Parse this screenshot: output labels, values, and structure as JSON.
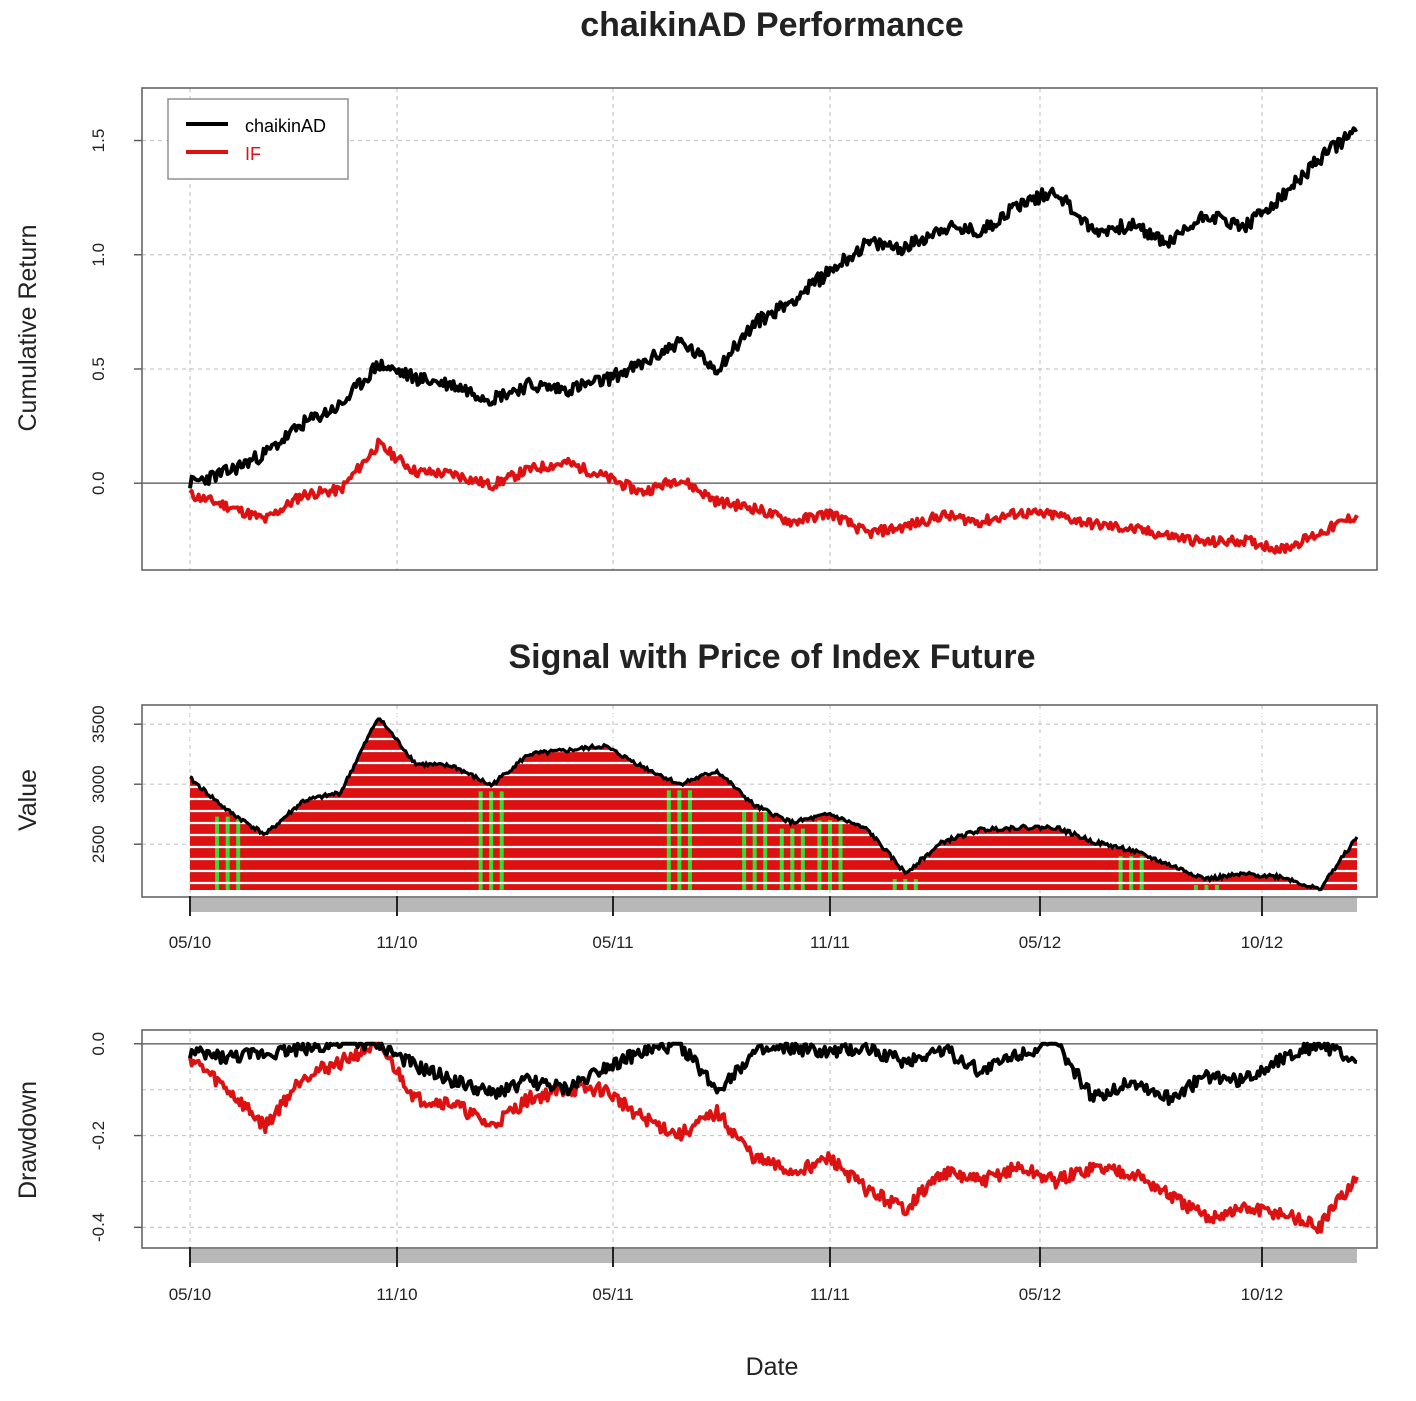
{
  "colors": {
    "strategy": "#000000",
    "benchmark": "#dd1111",
    "long_bar": "#dd1111",
    "short_bar": "#33dd33",
    "stripe": "#ffffff",
    "axis_band": "#b8b8b8"
  },
  "x_axis": {
    "label": "Date",
    "tick_labels": [
      "05/10",
      "11/10",
      "05/11",
      "11/11",
      "05/12",
      "10/12"
    ]
  },
  "chart_data": [
    {
      "type": "line",
      "title": "chaikinAD Performance",
      "ylabel": "Cumulative Return",
      "xlabel": "",
      "categories": [
        "05/10",
        "11/10",
        "05/11",
        "11/11",
        "05/12",
        "10/12"
      ],
      "yticks": [
        "0.0",
        "0.5",
        "1.0",
        "1.5"
      ],
      "ylim": [
        -0.38,
        1.73
      ],
      "grid": true,
      "legend": "top-left",
      "x": [
        "2010-05",
        "2010-06",
        "2010-07",
        "2010-08",
        "2010-09",
        "2010-10",
        "2010-11",
        "2010-12",
        "2011-01",
        "2011-02",
        "2011-03",
        "2011-04",
        "2011-05",
        "2011-06",
        "2011-07",
        "2011-08",
        "2011-09",
        "2011-10",
        "2011-11",
        "2011-12",
        "2012-01",
        "2012-02",
        "2012-03",
        "2012-04",
        "2012-05",
        "2012-06",
        "2012-07",
        "2012-08",
        "2012-09",
        "2012-10",
        "2012-11",
        "2012-12"
      ],
      "series": [
        {
          "name": "chaikinAD",
          "values": [
            0.0,
            0.05,
            0.13,
            0.26,
            0.34,
            0.52,
            0.46,
            0.43,
            0.37,
            0.43,
            0.41,
            0.45,
            0.52,
            0.62,
            0.5,
            0.7,
            0.8,
            0.93,
            1.05,
            1.03,
            1.12,
            1.1,
            1.22,
            1.28,
            1.1,
            1.13,
            1.05,
            1.18,
            1.12,
            1.25,
            1.42,
            1.55
          ]
        },
        {
          "name": "IF",
          "values": [
            -0.05,
            -0.1,
            -0.16,
            -0.05,
            -0.03,
            0.17,
            0.05,
            0.04,
            -0.01,
            0.06,
            0.09,
            0.03,
            -0.04,
            0.02,
            -0.08,
            -0.11,
            -0.17,
            -0.13,
            -0.22,
            -0.19,
            -0.14,
            -0.17,
            -0.13,
            -0.14,
            -0.18,
            -0.2,
            -0.23,
            -0.26,
            -0.25,
            -0.29,
            -0.22,
            -0.14
          ]
        }
      ]
    },
    {
      "type": "bar",
      "title": "Signal with Price of Index Future",
      "ylabel": "Value",
      "xlabel": "Date",
      "categories": [
        "05/10",
        "11/10",
        "05/11",
        "11/11",
        "05/12",
        "10/12"
      ],
      "yticks": [
        "2500",
        "3000",
        "3500"
      ],
      "ylim": [
        2060,
        3660
      ],
      "grid": true,
      "x": [
        "2010-05",
        "2010-06",
        "2010-07",
        "2010-08",
        "2010-09",
        "2010-10",
        "2010-11",
        "2010-12",
        "2011-01",
        "2011-02",
        "2011-03",
        "2011-04",
        "2011-05",
        "2011-06",
        "2011-07",
        "2011-08",
        "2011-09",
        "2011-10",
        "2011-11",
        "2011-12",
        "2012-01",
        "2012-02",
        "2012-03",
        "2012-04",
        "2012-05",
        "2012-06",
        "2012-07",
        "2012-08",
        "2012-09",
        "2012-10",
        "2012-11",
        "2012-12"
      ],
      "series": [
        {
          "name": "",
          "values": [
            3050,
            2780,
            2580,
            2860,
            2930,
            3560,
            3170,
            3150,
            2990,
            3250,
            3280,
            3320,
            3150,
            3000,
            3110,
            2820,
            2680,
            2750,
            2620,
            2260,
            2520,
            2620,
            2640,
            2640,
            2520,
            2450,
            2330,
            2210,
            2250,
            2230,
            2120,
            2560
          ]
        },
        {
          "name": "signal",
          "values": [
            1,
            -1,
            1,
            1,
            1,
            1,
            1,
            1,
            -1,
            1,
            1,
            1,
            1,
            -1,
            1,
            -1,
            -1,
            -1,
            1,
            -1,
            1,
            1,
            1,
            1,
            1,
            -1,
            1,
            -1,
            1,
            1,
            1,
            1
          ]
        }
      ]
    },
    {
      "type": "line",
      "title": "",
      "ylabel": "Drawdown",
      "xlabel": "Date",
      "categories": [
        "05/10",
        "11/10",
        "05/11",
        "11/11",
        "05/12",
        "10/12"
      ],
      "yticks": [
        "0.0",
        "-0.2",
        "-0.4"
      ],
      "ylim": [
        -0.445,
        0.03
      ],
      "grid": true,
      "x": [
        "2010-05",
        "2010-06",
        "2010-07",
        "2010-08",
        "2010-09",
        "2010-10",
        "2010-11",
        "2010-12",
        "2011-01",
        "2011-02",
        "2011-03",
        "2011-04",
        "2011-05",
        "2011-06",
        "2011-07",
        "2011-08",
        "2011-09",
        "2011-10",
        "2011-11",
        "2011-12",
        "2012-01",
        "2012-02",
        "2012-03",
        "2012-04",
        "2012-05",
        "2012-06",
        "2012-07",
        "2012-08",
        "2012-09",
        "2012-10",
        "2012-11",
        "2012-12"
      ],
      "series": [
        {
          "name": "chaikinAD",
          "values": [
            -0.02,
            -0.03,
            -0.02,
            -0.01,
            0.0,
            0.0,
            -0.05,
            -0.08,
            -0.11,
            -0.08,
            -0.1,
            -0.05,
            -0.02,
            0.0,
            -0.1,
            -0.02,
            -0.01,
            -0.02,
            -0.01,
            -0.04,
            -0.01,
            -0.06,
            -0.02,
            0.0,
            -0.12,
            -0.08,
            -0.12,
            -0.07,
            -0.08,
            -0.03,
            0.0,
            -0.04
          ]
        },
        {
          "name": "IF",
          "values": [
            -0.03,
            -0.1,
            -0.18,
            -0.07,
            -0.04,
            0.0,
            -0.12,
            -0.13,
            -0.18,
            -0.12,
            -0.1,
            -0.1,
            -0.16,
            -0.2,
            -0.15,
            -0.25,
            -0.28,
            -0.25,
            -0.32,
            -0.36,
            -0.28,
            -0.3,
            -0.27,
            -0.3,
            -0.27,
            -0.28,
            -0.33,
            -0.38,
            -0.36,
            -0.37,
            -0.4,
            -0.29
          ]
        }
      ]
    }
  ]
}
